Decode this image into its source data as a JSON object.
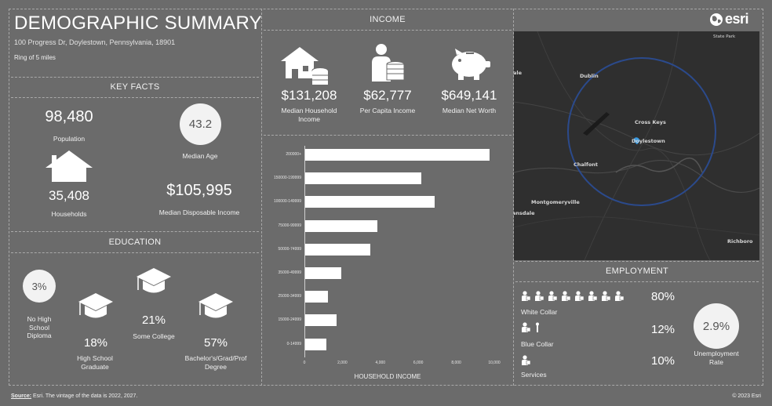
{
  "header": {
    "title": "DEMOGRAPHIC SUMMARY",
    "address": "100 Progress Dr, Doylestown, Pennsylvania, 18901",
    "ring": "Ring of 5 miles"
  },
  "key_facts": {
    "title": "KEY FACTS",
    "population_value": "98,480",
    "population_label": "Population",
    "median_age_value": "43.2",
    "median_age_label": "Median Age",
    "households_value": "35,408",
    "households_label": "Households",
    "disposable_income_value": "$105,995",
    "disposable_income_label": "Median Disposable Income"
  },
  "education": {
    "title": "EDUCATION",
    "no_hs_value": "3%",
    "no_hs_label": "No High School Diploma",
    "hs_value": "18%",
    "hs_label": "High School Graduate",
    "some_college_value": "21%",
    "some_college_label": "Some College",
    "bachelors_value": "57%",
    "bachelors_label": "Bachelor's/Grad/Prof Degree"
  },
  "income": {
    "title": "INCOME",
    "median_household_value": "$131,208",
    "median_household_label": "Median Household Income",
    "per_capita_value": "$62,777",
    "per_capita_label": "Per Capita Income",
    "net_worth_value": "$649,141",
    "net_worth_label": "Median Net Worth"
  },
  "chart_data": {
    "type": "bar",
    "orientation": "horizontal",
    "categories": [
      "200000+",
      "150000-199999",
      "100000-149999",
      "75000-99999",
      "50000-74999",
      "35000-49999",
      "25000-34999",
      "15000-24999",
      "0-14999"
    ],
    "values": [
      9700,
      6100,
      6800,
      3800,
      3450,
      1900,
      1200,
      1650,
      1100
    ],
    "xlabel": "HOUSEHOLD INCOME",
    "xlim": [
      0,
      10000
    ],
    "xticks": [
      "0",
      "2,000",
      "4,000",
      "6,000",
      "8,000",
      "10,000"
    ]
  },
  "map": {
    "logo_text": "esri",
    "labels": {
      "state_park": "State Park",
      "lansdale_partial": "ale",
      "dublin": "Dublin",
      "cross_keys": "Cross Keys",
      "doylestown": "Doylestown",
      "chalfont": "Chalfont",
      "montgomeryville": "Montgomeryville",
      "lansdale": "ansdale",
      "richboro": "Richboro"
    },
    "colors": {
      "ring": "#2b4a8c",
      "marker": "#3b9ae0",
      "map_bg": "#2f2f2f"
    }
  },
  "employment": {
    "title": "EMPLOYMENT",
    "white_collar_value": "80%",
    "white_collar_label": "White Collar",
    "blue_collar_value": "12%",
    "blue_collar_label": "Blue Collar",
    "services_value": "10%",
    "services_label": "Services",
    "unemployment_value": "2.9%",
    "unemployment_label": "Unemployment Rate"
  },
  "footer": {
    "source_label": "Source:",
    "source_text": " Esri. The vintage of the data is 2022, 2027.",
    "copyright": "© 2023 Esri"
  }
}
